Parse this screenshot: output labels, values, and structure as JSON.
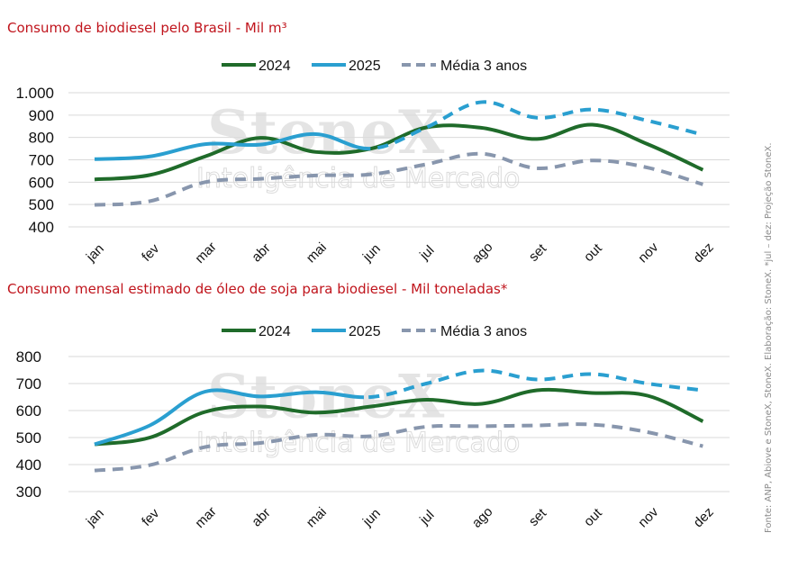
{
  "colors": {
    "title": "#c0141c",
    "series_2024": "#1f6b2a",
    "series_2025": "#2a9fd0",
    "series_avg": "#8896ad",
    "grid": "#d9d9d9"
  },
  "watermark": {
    "brand": "StoneX",
    "subtitle": "Inteligência de Mercado"
  },
  "source_note": "Fonte: ANP, Abiove e StoneX, StoneX. Elaboração: StoneX. *jul – dez: Projeção StoneX.",
  "chart_data": [
    {
      "type": "line",
      "title": "Consumo de biodiesel pelo Brasil - Mil m³",
      "xlabel": "",
      "ylabel": "",
      "categories": [
        "jan",
        "fev",
        "mar",
        "abr",
        "mai",
        "jun",
        "jul",
        "ago",
        "set",
        "out",
        "nov",
        "dez"
      ],
      "ylim": [
        400,
        1000
      ],
      "yticks": [
        400,
        500,
        600,
        700,
        800,
        900,
        1000
      ],
      "ytick_labels": [
        "400",
        "500",
        "600",
        "700",
        "800",
        "900",
        "1.000"
      ],
      "grid": true,
      "legend_position": "top-center",
      "projection_starts_index": 5,
      "series": [
        {
          "name": "2024",
          "style": "solid",
          "values": [
            612,
            632,
            715,
            798,
            735,
            750,
            845,
            843,
            793,
            857,
            770,
            655
          ]
        },
        {
          "name": "2025",
          "style": "solid-then-dashed",
          "values": [
            703,
            715,
            770,
            768,
            815,
            750,
            845,
            958,
            888,
            925,
            875,
            812
          ]
        },
        {
          "name": "Média 3 anos",
          "style": "dashed",
          "values": [
            498,
            515,
            600,
            615,
            630,
            635,
            680,
            727,
            662,
            697,
            665,
            590
          ]
        }
      ]
    },
    {
      "type": "line",
      "title": "Consumo mensal estimado de óleo de soja para biodiesel - Mil toneladas*",
      "xlabel": "",
      "ylabel": "",
      "categories": [
        "jan",
        "fev",
        "mar",
        "abr",
        "mai",
        "jun",
        "jul",
        "ago",
        "set",
        "out",
        "nov",
        "dez"
      ],
      "ylim": [
        300,
        800
      ],
      "yticks": [
        300,
        400,
        500,
        600,
        700,
        800
      ],
      "ytick_labels": [
        "300",
        "400",
        "500",
        "600",
        "700",
        "800"
      ],
      "grid": true,
      "legend_position": "top-center",
      "projection_starts_index": 5,
      "series": [
        {
          "name": "2024",
          "style": "solid",
          "values": [
            475,
            500,
            595,
            615,
            592,
            615,
            640,
            625,
            675,
            665,
            655,
            560
          ]
        },
        {
          "name": "2025",
          "style": "solid-then-dashed",
          "values": [
            475,
            545,
            670,
            652,
            668,
            650,
            700,
            748,
            715,
            735,
            700,
            675
          ]
        },
        {
          "name": "Média 3 anos",
          "style": "dashed",
          "values": [
            378,
            398,
            465,
            480,
            510,
            505,
            540,
            542,
            545,
            548,
            520,
            468
          ]
        }
      ]
    }
  ]
}
